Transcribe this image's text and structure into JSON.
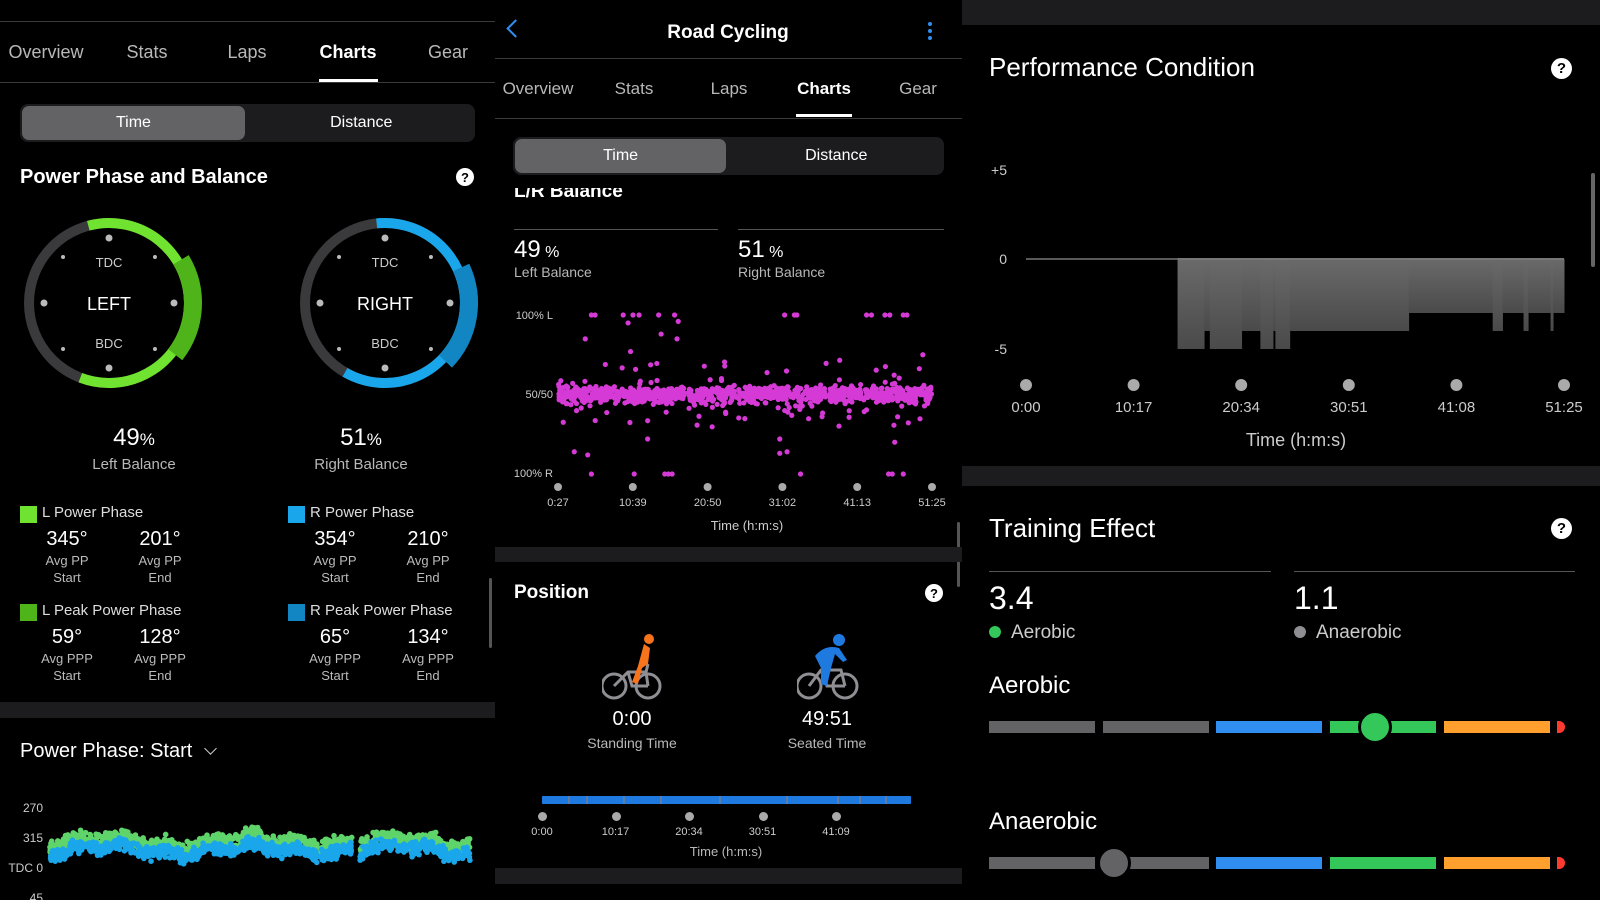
{
  "left_panel": {
    "tabs": [
      "Overview",
      "Stats",
      "Laps",
      "Charts",
      "Gear"
    ],
    "active_tab": "Charts",
    "segment": {
      "time": "Time",
      "distance": "Distance",
      "selected": "Time"
    },
    "title": "Power Phase and Balance",
    "help": "?",
    "left_ring": {
      "label": "LEFT",
      "tdc": "TDC",
      "bdc": "BDC",
      "pp_start": 345,
      "pp_end": 201,
      "ppp_start": 59,
      "ppp_end": 128,
      "color": "#6fe32f",
      "peak_color": "#4fb41a"
    },
    "right_ring": {
      "label": "RIGHT",
      "tdc": "TDC",
      "bdc": "BDC",
      "pp_start": 354,
      "pp_end": 210,
      "ppp_start": 65,
      "ppp_end": 134,
      "color": "#1aa6ea",
      "peak_color": "#1286c2"
    },
    "left_balance": {
      "value": "49",
      "unit": "%",
      "label": "Left Balance"
    },
    "right_balance": {
      "value": "51",
      "unit": "%",
      "label": "Right Balance"
    },
    "l_pp": {
      "title": "L Power Phase",
      "v1": "345°",
      "l1a": "Avg PP",
      "l1b": "Start",
      "v2": "201°",
      "l2a": "Avg PP",
      "l2b": "End"
    },
    "r_pp": {
      "title": "R Power Phase",
      "v1": "354°",
      "l1a": "Avg PP",
      "l1b": "Start",
      "v2": "210°",
      "l2a": "Avg PP",
      "l2b": "End"
    },
    "l_ppp": {
      "title": "L Peak Power Phase",
      "v1": "59°",
      "l1a": "Avg PPP",
      "l1b": "Start",
      "v2": "128°",
      "l2a": "Avg PPP",
      "l2b": "End"
    },
    "r_ppp": {
      "title": "R Peak Power Phase",
      "v1": "65°",
      "l1a": "Avg PPP",
      "l1b": "Start",
      "v2": "134°",
      "l2a": "Avg PPP",
      "l2b": "End"
    },
    "phase_chart_title": "Power Phase: Start"
  },
  "middle_panel": {
    "header_title": "Road Cycling",
    "tabs": [
      "Overview",
      "Stats",
      "Laps",
      "Charts",
      "Gear"
    ],
    "active_tab": "Charts",
    "segment": {
      "time": "Time",
      "distance": "Distance",
      "selected": "Time"
    },
    "section_title": "L/R Balance",
    "left_balance": {
      "value": "49",
      "unit": "%",
      "label": "Left Balance"
    },
    "right_balance": {
      "value": "51",
      "unit": "%",
      "label": "Right Balance"
    },
    "position": {
      "title": "Position",
      "help": "?",
      "standing_time": "0:00",
      "standing_label": "Standing Time",
      "seated_time": "49:51",
      "seated_label": "Seated Time",
      "ticks": [
        "0:00",
        "10:17",
        "20:34",
        "30:51",
        "41:09"
      ],
      "xlabel": "Time (h:m:s)",
      "seated_color": "#1f7ae0"
    }
  },
  "right_panel": {
    "performance_title": "Performance Condition",
    "help": "?",
    "training_title": "Training Effect",
    "aerobic_value": "3.4",
    "aerobic_label": "Aerobic",
    "aerobic_dot": "#34c759",
    "anaerobic_value": "1.1",
    "anaerobic_label": "Anaerobic",
    "anaerobic_dot": "#8e8e93",
    "aerobic_heading": "Aerobic",
    "anaerobic_heading": "Anaerobic",
    "scale_colors": [
      "#636366",
      "#636366",
      "#2f8ef0",
      "#34c759",
      "#ff9f2e",
      "#ff3b30"
    ],
    "aerobic_level": 3.4,
    "anaerobic_level": 1.1
  },
  "chart_data": [
    {
      "type": "scatter",
      "title": "L/R Balance",
      "xlabel": "Time (h:m:s)",
      "y_ticks": [
        "100% L",
        "50/50",
        "100% R"
      ],
      "x_ticks": [
        "0:27",
        "10:39",
        "20:50",
        "31:02",
        "41:13",
        "51:25"
      ],
      "x_range_s": [
        27,
        3085
      ],
      "y_range_pct_left": [
        0,
        100
      ],
      "cluster_center_pct_left": 50,
      "cluster_spread_pct": 8,
      "outliers": [
        [
          300,
          100
        ],
        [
          330,
          100
        ],
        [
          560,
          100
        ],
        [
          640,
          100
        ],
        [
          690,
          100
        ],
        [
          850,
          100
        ],
        [
          980,
          100
        ],
        [
          1880,
          100
        ],
        [
          1960,
          100
        ],
        [
          1980,
          100
        ],
        [
          2550,
          100
        ],
        [
          2590,
          100
        ],
        [
          2700,
          100
        ],
        [
          2740,
          100
        ],
        [
          2850,
          100
        ],
        [
          2880,
          100
        ],
        [
          270,
          12
        ],
        [
          300,
          0
        ],
        [
          650,
          0
        ],
        [
          900,
          0
        ],
        [
          930,
          0
        ],
        [
          960,
          0
        ],
        [
          1840,
          22
        ],
        [
          1840,
          13
        ],
        [
          1900,
          14
        ],
        [
          2010,
          0
        ],
        [
          2730,
          0
        ],
        [
          2760,
          0
        ],
        [
          2850,
          0
        ],
        [
          1010,
          96
        ],
        [
          1000,
          85
        ],
        [
          870,
          88
        ],
        [
          600,
          95
        ],
        [
          620,
          77
        ],
        [
          250,
          85
        ],
        [
          160,
          14
        ],
        [
          760,
          22
        ],
        [
          2780,
          20
        ],
        [
          3010,
          75
        ]
      ]
    },
    {
      "type": "scatter",
      "title": "Power Phase: Start",
      "y_ticks": [
        "270",
        "315",
        "TDC 0",
        "45"
      ],
      "series": [
        {
          "name": "L Power Phase Start",
          "color": "#5fd46a",
          "mean_deg": 345
        },
        {
          "name": "R Power Phase Start",
          "color": "#1aa6ea",
          "mean_deg": 354
        }
      ]
    },
    {
      "type": "area",
      "title": "Performance Condition",
      "xlabel": "Time (h:m:s)",
      "y_ticks": [
        "+5",
        "0",
        "-5"
      ],
      "ylim": [
        -6,
        5
      ],
      "x_ticks": [
        "0:00",
        "10:17",
        "20:34",
        "30:51",
        "41:08",
        "51:25"
      ],
      "x_range_s": [
        0,
        3085
      ],
      "steps": [
        [
          0,
          869,
          0
        ],
        [
          869,
          1021,
          -5
        ],
        [
          1021,
          1054,
          -4
        ],
        [
          1054,
          1236,
          -5
        ],
        [
          1236,
          1344,
          -4
        ],
        [
          1344,
          1416,
          -5
        ],
        [
          1416,
          1430,
          -4
        ],
        [
          1430,
          1512,
          -5
        ],
        [
          1512,
          2194,
          -4
        ],
        [
          2194,
          2676,
          -3
        ],
        [
          2676,
          2732,
          -4
        ],
        [
          2732,
          2853,
          -3
        ],
        [
          2853,
          2879,
          -4
        ],
        [
          2879,
          3008,
          -3
        ],
        [
          3008,
          3022,
          -4
        ],
        [
          3022,
          3085,
          -3
        ]
      ]
    }
  ]
}
